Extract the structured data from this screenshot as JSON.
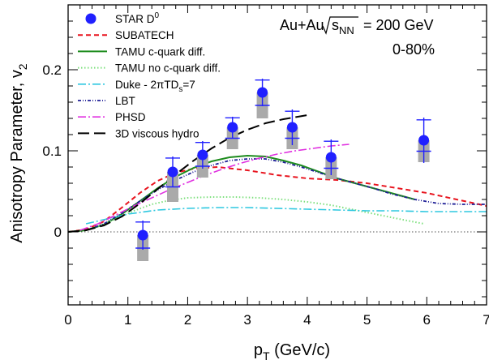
{
  "chart_data": {
    "type": "line",
    "xlabel": "p",
    "xlabel_sub": "T",
    "xlabel_unit": " (GeV/c)",
    "ylabel": "Anisotropy Parameter, v",
    "ylabel_sub": "2",
    "xlim": [
      0,
      7
    ],
    "ylim": [
      -0.09,
      0.28
    ],
    "x_ticks": [
      0,
      1,
      2,
      3,
      4,
      5,
      6,
      7
    ],
    "x_tick_labels": [
      "0",
      "1",
      "2",
      "3",
      "4",
      "5",
      "6",
      "7"
    ],
    "y_ticks": [
      0,
      0.1,
      0.2
    ],
    "y_tick_labels": [
      "0",
      "0.1",
      "0.2"
    ],
    "zero_line": true,
    "annotations": {
      "system": "Au+Au",
      "sqrt": "s",
      "sqrt_sub": "NN",
      "energy": "= 200 GeV",
      "centrality": "0-80%"
    },
    "data_points": {
      "name": "STAR D",
      "name_sup": "0",
      "color": "#2020ff",
      "points": [
        {
          "x": 1.25,
          "y": -0.004,
          "stat": 0.018,
          "sys_lo": 0.032,
          "sys_hi": 0.0
        },
        {
          "x": 1.75,
          "y": 0.074,
          "stat": 0.019,
          "sys_lo": 0.037,
          "sys_hi": 0.0
        },
        {
          "x": 2.25,
          "y": 0.095,
          "stat": 0.017,
          "sys_lo": 0.028,
          "sys_hi": 0.0
        },
        {
          "x": 2.75,
          "y": 0.129,
          "stat": 0.013,
          "sys_lo": 0.027,
          "sys_hi": 0.0
        },
        {
          "x": 3.25,
          "y": 0.172,
          "stat": 0.017,
          "sys_lo": 0.032,
          "sys_hi": 0.0
        },
        {
          "x": 3.75,
          "y": 0.129,
          "stat": 0.022,
          "sys_lo": 0.027,
          "sys_hi": 0.0
        },
        {
          "x": 4.4,
          "y": 0.092,
          "stat": 0.022,
          "sys_lo": 0.027,
          "sys_hi": 0.0
        },
        {
          "x": 5.95,
          "y": 0.113,
          "stat": 0.028,
          "sys_lo": 0.027,
          "sys_hi": 0.0
        }
      ]
    },
    "series": [
      {
        "name": "SUBATECH",
        "color": "#e8141e",
        "dash": "6,4",
        "width": 2,
        "x": [
          0,
          0.3,
          0.6,
          0.9,
          1.2,
          1.5,
          1.8,
          2.1,
          2.5,
          3.0,
          3.5,
          4.0,
          4.5,
          5.0,
          5.5,
          6.0,
          6.5,
          7.0
        ],
        "y": [
          0,
          0.003,
          0.013,
          0.03,
          0.048,
          0.063,
          0.073,
          0.078,
          0.08,
          0.076,
          0.07,
          0.066,
          0.064,
          0.06,
          0.054,
          0.048,
          0.04,
          0.032
        ]
      },
      {
        "name": "TAMU c-quark diff.",
        "color": "#1e8c1e",
        "dash": "",
        "width": 2,
        "x": [
          0,
          0.3,
          0.6,
          0.9,
          1.2,
          1.5,
          1.8,
          2.1,
          2.4,
          2.7,
          3.0,
          3.3,
          3.6,
          3.9,
          4.2,
          4.5,
          4.8,
          5.1,
          5.4,
          5.8
        ],
        "y": [
          0,
          0.002,
          0.009,
          0.022,
          0.038,
          0.054,
          0.068,
          0.079,
          0.087,
          0.092,
          0.094,
          0.093,
          0.088,
          0.082,
          0.074,
          0.066,
          0.06,
          0.054,
          0.048,
          0.04
        ]
      },
      {
        "name": "TAMU no c-quark diff.",
        "color": "#7ee07e",
        "dash": "1.5,2.5",
        "width": 2,
        "x": [
          0.5,
          0.8,
          1.1,
          1.4,
          1.7,
          2.0,
          2.4,
          2.8,
          3.2,
          3.6,
          4.0,
          4.4,
          4.8,
          5.2,
          5.6,
          5.95
        ],
        "y": [
          0.007,
          0.016,
          0.026,
          0.034,
          0.039,
          0.042,
          0.043,
          0.043,
          0.042,
          0.04,
          0.037,
          0.033,
          0.027,
          0.021,
          0.015,
          0.01
        ]
      },
      {
        "name": "Duke - 2πTD_s=7",
        "name_main": "Duke - 2πTD",
        "name_sub": "s",
        "name_tail": "=7",
        "color": "#2ec8e0",
        "dash": "10,3,2,3",
        "width": 1.6,
        "x": [
          0.3,
          1.0,
          1.5,
          2.0,
          2.5,
          3.0,
          3.5,
          4.0,
          4.5,
          5.0,
          5.5,
          6.0,
          6.5,
          7.0
        ],
        "y": [
          0.01,
          0.022,
          0.027,
          0.029,
          0.03,
          0.03,
          0.029,
          0.028,
          0.027,
          0.026,
          0.026,
          0.025,
          0.025,
          0.025
        ]
      },
      {
        "name": "LBT",
        "color": "#1e1e96",
        "dash": "4,2,1,2,1,2",
        "width": 1.8,
        "x": [
          0.3,
          0.6,
          0.9,
          1.2,
          1.5,
          1.8,
          2.1,
          2.4,
          2.7,
          3.0,
          3.3,
          3.6,
          3.9,
          4.2,
          4.5,
          4.8,
          5.1,
          5.4,
          5.8,
          6.2,
          6.6,
          7.0
        ],
        "y": [
          0.002,
          0.01,
          0.023,
          0.038,
          0.052,
          0.064,
          0.074,
          0.082,
          0.088,
          0.09,
          0.09,
          0.086,
          0.08,
          0.073,
          0.066,
          0.06,
          0.054,
          0.047,
          0.04,
          0.035,
          0.034,
          0.034
        ]
      },
      {
        "name": "PHSD",
        "color": "#e030e0",
        "dash": "10,3,2,3",
        "width": 1.6,
        "x": [
          0.2,
          0.5,
          0.8,
          1.1,
          1.4,
          1.7,
          2.0,
          2.3,
          2.6,
          2.9,
          3.2,
          3.5,
          3.8,
          4.1,
          4.4,
          4.7
        ],
        "y": [
          0.002,
          0.01,
          0.021,
          0.032,
          0.042,
          0.052,
          0.061,
          0.07,
          0.078,
          0.085,
          0.091,
          0.096,
          0.1,
          0.103,
          0.106,
          0.108
        ]
      },
      {
        "name": "3D viscous hydro",
        "color": "#000000",
        "dash": "14,6",
        "width": 2,
        "x": [
          0,
          0.3,
          0.6,
          0.9,
          1.2,
          1.5,
          1.8,
          2.1,
          2.4,
          2.7,
          3.0,
          3.3,
          3.6,
          4.0
        ],
        "y": [
          0,
          0.002,
          0.008,
          0.019,
          0.035,
          0.053,
          0.071,
          0.088,
          0.103,
          0.116,
          0.126,
          0.134,
          0.139,
          0.144
        ]
      }
    ]
  }
}
